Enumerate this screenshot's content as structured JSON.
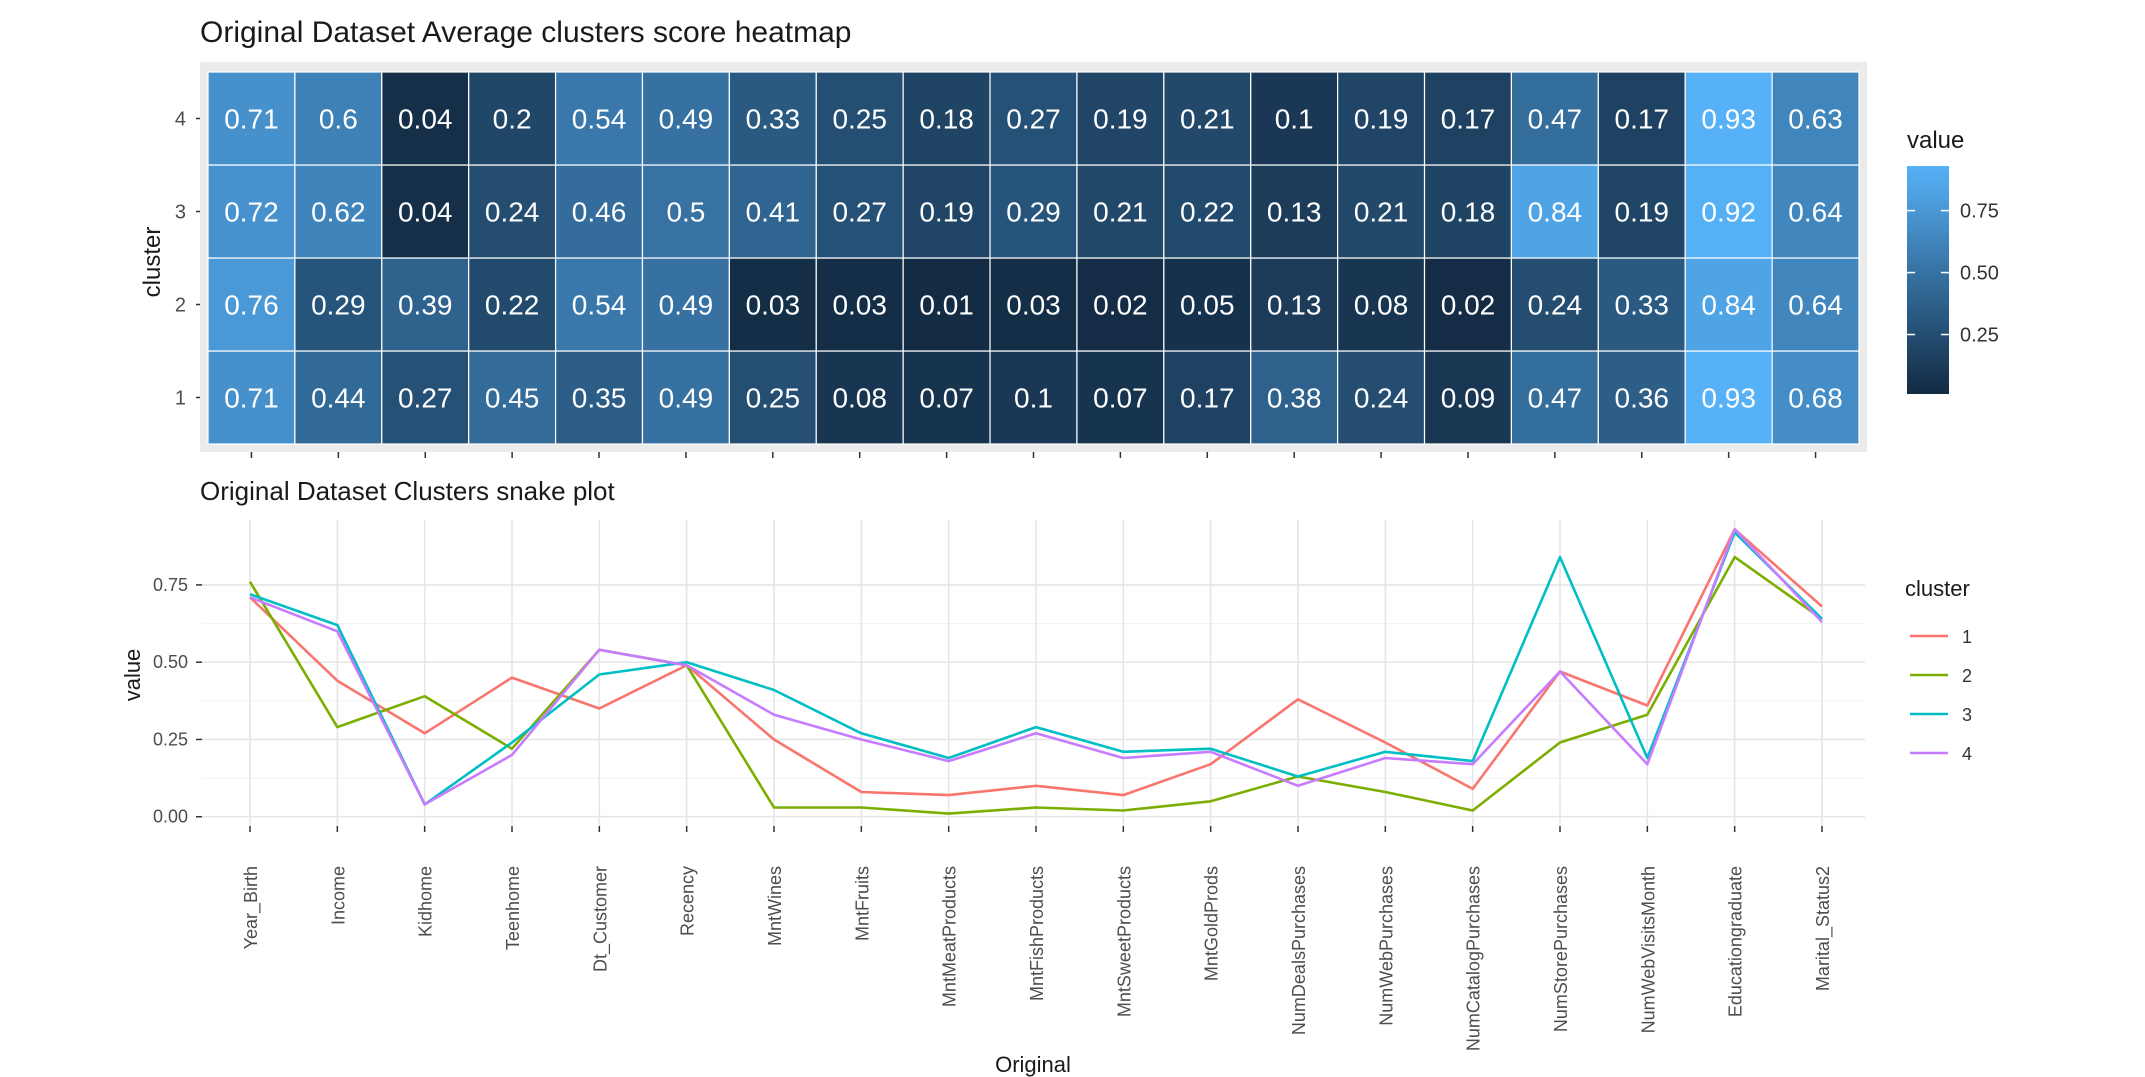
{
  "chart_data": [
    {
      "type": "heatmap",
      "title": "Original Dataset Average clusters score heatmap",
      "xlabel": "",
      "ylabel": "cluster",
      "y_categories": [
        "1",
        "2",
        "3",
        "4"
      ],
      "x_categories": [
        "Year_Birth",
        "Income",
        "Kidhome",
        "Teenhome",
        "Dt_Customer",
        "Recency",
        "MntWines",
        "MntFruits",
        "MntMeatProducts",
        "MntFishProducts",
        "MntSweetProducts",
        "MntGoldProds",
        "NumDealsPurchases",
        "NumWebPurchases",
        "NumCatalogPurchases",
        "NumStorePurchases",
        "NumWebVisitsMonth",
        "Educationgraduate",
        "Marital_Status2"
      ],
      "values": {
        "4": [
          0.71,
          0.6,
          0.04,
          0.2,
          0.54,
          0.49,
          0.33,
          0.25,
          0.18,
          0.27,
          0.19,
          0.21,
          0.1,
          0.19,
          0.17,
          0.47,
          0.17,
          0.93,
          0.63
        ],
        "3": [
          0.72,
          0.62,
          0.04,
          0.24,
          0.46,
          0.5,
          0.41,
          0.27,
          0.19,
          0.29,
          0.21,
          0.22,
          0.13,
          0.21,
          0.18,
          0.84,
          0.19,
          0.92,
          0.64
        ],
        "2": [
          0.76,
          0.29,
          0.39,
          0.22,
          0.54,
          0.49,
          0.03,
          0.03,
          0.01,
          0.03,
          0.02,
          0.05,
          0.13,
          0.08,
          0.02,
          0.24,
          0.33,
          0.84,
          0.64
        ],
        "1": [
          0.71,
          0.44,
          0.27,
          0.45,
          0.35,
          0.49,
          0.25,
          0.08,
          0.07,
          0.1,
          0.07,
          0.17,
          0.38,
          0.24,
          0.09,
          0.47,
          0.36,
          0.93,
          0.68
        ]
      },
      "legend": {
        "title": "value",
        "ticks": [
          0.75,
          0.5,
          0.25
        ],
        "tick_labels": [
          "0.75",
          "0.50",
          "0.25"
        ],
        "range": [
          0.01,
          0.93
        ],
        "colors": {
          "low": "#132B43",
          "high": "#56B1F7"
        }
      }
    },
    {
      "type": "line",
      "title": "Original Dataset Clusters snake plot",
      "xlabel": "Original",
      "ylabel": "value",
      "ylim": [
        -0.03,
        0.96
      ],
      "yticks": [
        0,
        0.25,
        0.5,
        0.75
      ],
      "ytick_labels": [
        "0.00",
        "0.25",
        "0.50",
        "0.75"
      ],
      "categories": [
        "Year_Birth",
        "Income",
        "Kidhome",
        "Teenhome",
        "Dt_Customer",
        "Recency",
        "MntWines",
        "MntFruits",
        "MntMeatProducts",
        "MntFishProducts",
        "MntSweetProducts",
        "MntGoldProds",
        "NumDealsPurchases",
        "NumWebPurchases",
        "NumCatalogPurchases",
        "NumStorePurchases",
        "NumWebVisitsMonth",
        "Educationgraduate",
        "Marital_Status2"
      ],
      "legend_title": "cluster",
      "series": [
        {
          "name": "1",
          "color": "#F8766D",
          "values": [
            0.71,
            0.44,
            0.27,
            0.45,
            0.35,
            0.49,
            0.25,
            0.08,
            0.07,
            0.1,
            0.07,
            0.17,
            0.38,
            0.24,
            0.09,
            0.47,
            0.36,
            0.93,
            0.68
          ]
        },
        {
          "name": "2",
          "color": "#7CAE00",
          "values": [
            0.76,
            0.29,
            0.39,
            0.22,
            0.54,
            0.49,
            0.03,
            0.03,
            0.01,
            0.03,
            0.02,
            0.05,
            0.13,
            0.08,
            0.02,
            0.24,
            0.33,
            0.84,
            0.64
          ]
        },
        {
          "name": "3",
          "color": "#00BFC4",
          "values": [
            0.72,
            0.62,
            0.04,
            0.24,
            0.46,
            0.5,
            0.41,
            0.27,
            0.19,
            0.29,
            0.21,
            0.22,
            0.13,
            0.21,
            0.18,
            0.84,
            0.19,
            0.92,
            0.64
          ]
        },
        {
          "name": "4",
          "color": "#C77CFF",
          "values": [
            0.71,
            0.6,
            0.04,
            0.2,
            0.54,
            0.49,
            0.33,
            0.25,
            0.18,
            0.27,
            0.19,
            0.21,
            0.1,
            0.19,
            0.17,
            0.47,
            0.17,
            0.93,
            0.63
          ]
        }
      ]
    }
  ]
}
